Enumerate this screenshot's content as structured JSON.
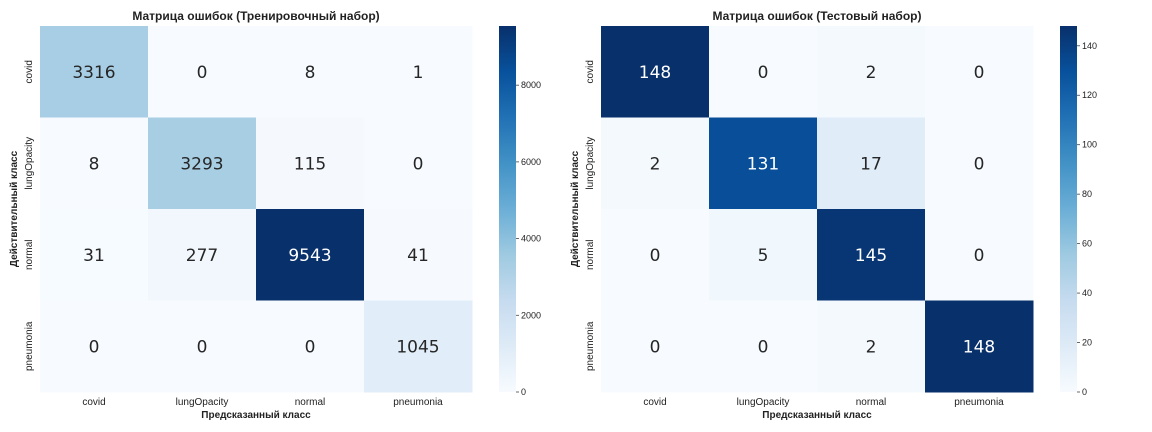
{
  "chart_data": [
    {
      "type": "heatmap",
      "title": "Матрица ошибок (Тренировочный набор)",
      "xlabel": "Предсказанный класс",
      "ylabel": "Действительный класс",
      "x_categories": [
        "covid",
        "lungOpacity",
        "normal",
        "pneumonia"
      ],
      "y_categories": [
        "covid",
        "lungOpacity",
        "normal",
        "pneumonia"
      ],
      "values": [
        [
          3316,
          0,
          8,
          1
        ],
        [
          8,
          3293,
          115,
          0
        ],
        [
          31,
          277,
          9543,
          41
        ],
        [
          0,
          0,
          0,
          1045
        ]
      ],
      "colorbar": {
        "min": 0,
        "max": 9543,
        "ticks": [
          0,
          2000,
          4000,
          6000,
          8000
        ],
        "colormap": "Blues"
      }
    },
    {
      "type": "heatmap",
      "title": "Матрица ошибок (Тестовый набор)",
      "xlabel": "Предсказанный класс",
      "ylabel": "Действительный класс",
      "x_categories": [
        "covid",
        "lungOpacity",
        "normal",
        "pneumonia"
      ],
      "y_categories": [
        "covid",
        "lungOpacity",
        "normal",
        "pneumonia"
      ],
      "values": [
        [
          148,
          0,
          2,
          0
        ],
        [
          2,
          131,
          17,
          0
        ],
        [
          0,
          5,
          145,
          0
        ],
        [
          0,
          0,
          2,
          148
        ]
      ],
      "colorbar": {
        "min": 0,
        "max": 148,
        "ticks": [
          0,
          20,
          40,
          60,
          80,
          100,
          120,
          140
        ],
        "colormap": "Blues"
      }
    }
  ]
}
